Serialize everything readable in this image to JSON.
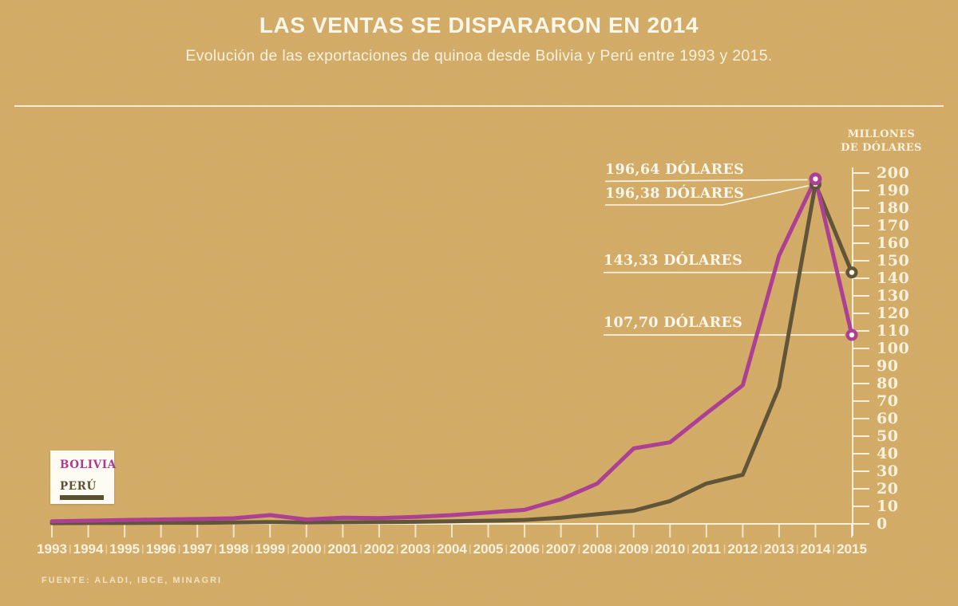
{
  "header": {
    "title": "LAS VENTAS SE DISPARARON EN 2014",
    "subtitle": "Evolución de las exportaciones de quinoa desde Bolivia y Perú entre 1993 y 2015."
  },
  "axis": {
    "unit_label_line1": "MILLONES",
    "unit_label_line2": "DE DÓLARES"
  },
  "legend": {
    "items": [
      {
        "label": "BOLIVIA",
        "color": "#ab3a90"
      },
      {
        "label": "PERÚ",
        "color": "#5c5033"
      }
    ]
  },
  "annotations": [
    {
      "label": "196,64 DÓLARES",
      "series": "Bolivia",
      "year": 2014,
      "value": 196.64
    },
    {
      "label": "196,38 DÓLARES",
      "series": "Perú",
      "year": 2014,
      "value": 196.38
    },
    {
      "label": "143,33 DÓLARES",
      "series": "Perú",
      "year": 2015,
      "value": 143.33
    },
    {
      "label": "107,70 DÓLARES",
      "series": "Bolivia",
      "year": 2015,
      "value": 107.7
    }
  ],
  "source": "FUENTE: ALADI, IBCE, MINAGRI",
  "colors": {
    "background": "#d1a963",
    "text_cream": "#f8f1dd",
    "bolivia": "#aa3a90",
    "peru": "#5c5033"
  },
  "chart_data": {
    "type": "line",
    "title": "LAS VENTAS SE DISPARARON EN 2014",
    "xlabel": "",
    "ylabel": "MILLONES DE DÓLARES",
    "ylim": [
      0,
      200
    ],
    "y_tick_step": 10,
    "y_ticks": [
      0,
      10,
      20,
      30,
      40,
      50,
      60,
      70,
      80,
      90,
      100,
      110,
      120,
      130,
      140,
      150,
      160,
      170,
      180,
      190,
      200
    ],
    "grid": false,
    "legend_position": "bottom-left",
    "x": [
      1993,
      1994,
      1995,
      1996,
      1997,
      1998,
      1999,
      2000,
      2001,
      2002,
      2003,
      2004,
      2005,
      2006,
      2007,
      2008,
      2009,
      2010,
      2011,
      2012,
      2013,
      2014,
      2015
    ],
    "series": [
      {
        "name": "Bolivia",
        "color": "#aa3a90",
        "values": [
          1.5,
          1.8,
          2.2,
          2.5,
          2.8,
          3.2,
          5,
          2.5,
          3.5,
          3.3,
          4,
          5,
          6.5,
          8,
          14,
          23,
          43,
          46.5,
          63,
          79,
          153,
          196.64,
          107.7
        ]
      },
      {
        "name": "Perú",
        "color": "#5c5033",
        "values": [
          0.4,
          0.5,
          0.5,
          0.6,
          0.6,
          0.8,
          1,
          0.8,
          0.9,
          1,
          1.2,
          1.5,
          1.8,
          2.2,
          3.5,
          5.5,
          7.5,
          13,
          23,
          28,
          78,
          196.38,
          143.33
        ]
      }
    ]
  }
}
